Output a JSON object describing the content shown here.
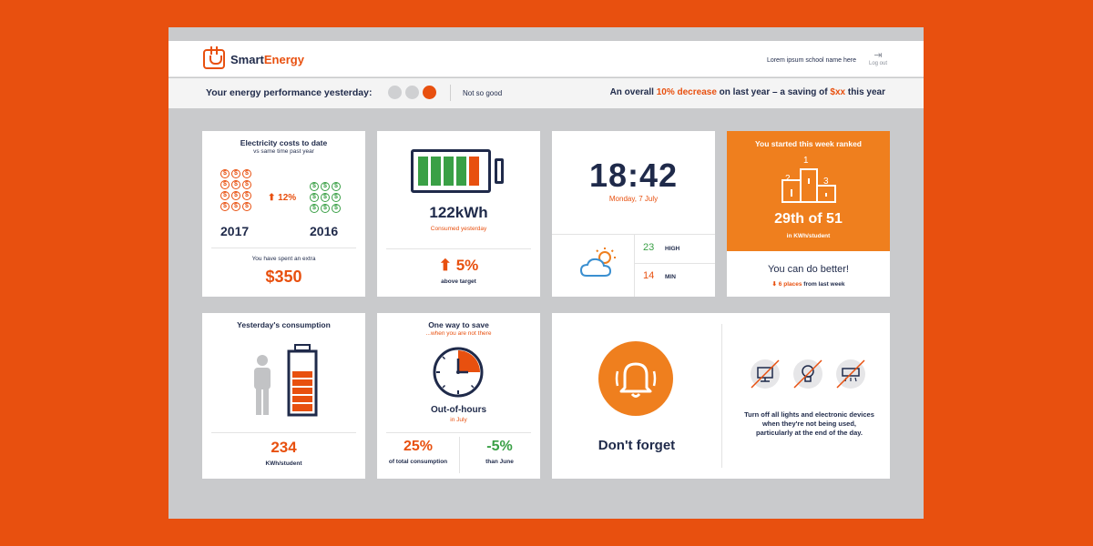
{
  "header": {
    "logo_smart": "Smart",
    "logo_energy": "Energy",
    "school_name": "Lorem ipsum school name here",
    "logout_label": "Log out"
  },
  "performance": {
    "label": "Your energy performance yesterday:",
    "status": "Not so good",
    "summary_prefix": "An overall",
    "summary_highlight": "10% decrease",
    "summary_middle": "on last year – a saving of",
    "summary_amount": "$xx",
    "summary_suffix": "this year"
  },
  "costs": {
    "title": "Electricity costs to date",
    "subtitle": "vs same time past year",
    "year_current": "2017",
    "year_past": "2016",
    "change": "12%",
    "spent_label": "You have spent an extra",
    "spent_value": "$350",
    "coin_symbol": "$"
  },
  "consumed": {
    "value": "122kWh",
    "label": "Consumed yesterday",
    "change": "5%",
    "change_label": "above target",
    "battery_level": 0.8
  },
  "weather": {
    "time": "18:42",
    "date": "Monday, 7 July",
    "high": "23",
    "high_label": "HIGH",
    "low": "14",
    "low_label": "MIN",
    "icon": "partly-cloudy-icon"
  },
  "ranking": {
    "title": "You started this week ranked",
    "podium": [
      "1",
      "2",
      "3"
    ],
    "rank": "29th of 51",
    "unit": "in KWh/student",
    "message": "You can do better!",
    "places": "6 places",
    "places_suffix": "from last week"
  },
  "yesterday": {
    "title": "Yesterday's consumption",
    "value": "234",
    "unit": "KWh/student",
    "battery_level": 0.8
  },
  "save": {
    "title": "One way to save",
    "subtitle": "...when you are not there",
    "label": "Out-of-hours",
    "sublabel": "in July",
    "stat1_value": "25%",
    "stat1_label": "of total consumption",
    "stat2_value": "-5%",
    "stat2_label": "than June",
    "out_of_hours_fraction": 0.25
  },
  "reminder": {
    "title": "Don't forget",
    "message": "Turn off all lights and electronic devices when they're not being used, particularly at the end of the day.",
    "icons": [
      "computer-icon",
      "light-bulb-icon",
      "air-conditioner-icon"
    ]
  },
  "colors": {
    "accent": "#e8500f",
    "accent_light": "#ef7f1e",
    "navy": "#1f2a4a",
    "green": "#3aa046"
  }
}
